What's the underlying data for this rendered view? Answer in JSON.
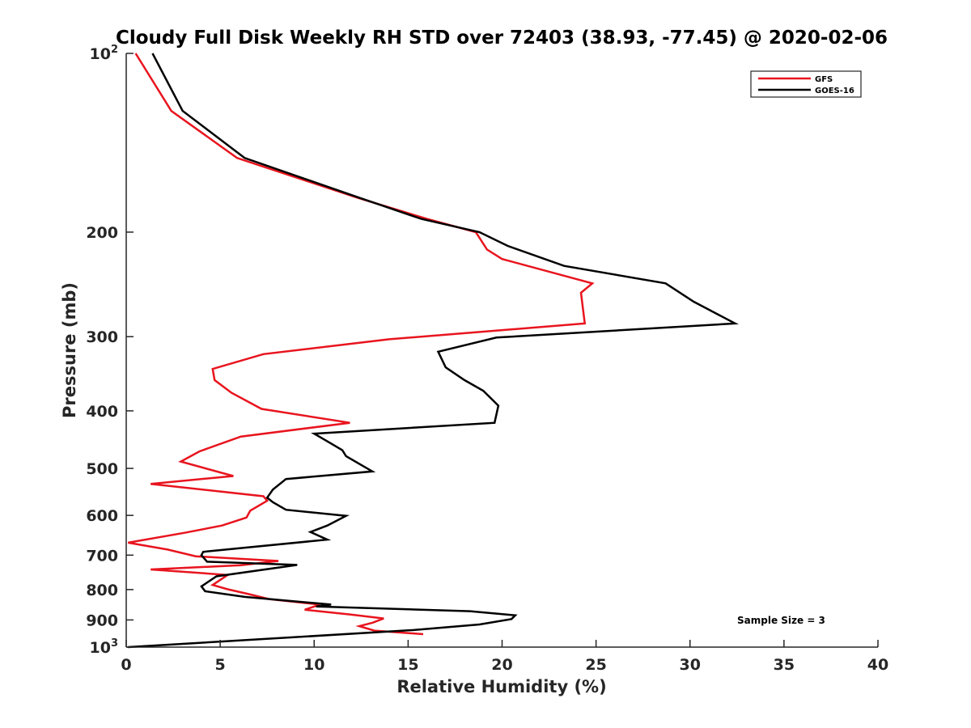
{
  "chart_data": {
    "type": "line",
    "title": "Cloudy Full Disk Weekly RH STD over 72403 (38.93, -77.45) @ 2020-02-06",
    "xlabel": "Relative Humidity (%)",
    "ylabel": "Pressure (mb)",
    "xlim": [
      0,
      40
    ],
    "ylim": [
      100,
      1000
    ],
    "y_scale": "log",
    "y_reversed": true,
    "grid": false,
    "xticks": [
      "0",
      "5",
      "10",
      "15",
      "20",
      "25",
      "30",
      "35",
      "40"
    ],
    "yticks": [
      {
        "value": 100,
        "base": "10",
        "exp": "2"
      },
      {
        "value": 200,
        "label": "200"
      },
      {
        "value": 300,
        "label": "300"
      },
      {
        "value": 400,
        "label": "400"
      },
      {
        "value": 500,
        "label": "500"
      },
      {
        "value": 600,
        "label": "600"
      },
      {
        "value": 700,
        "label": "700"
      },
      {
        "value": 800,
        "label": "800"
      },
      {
        "value": 900,
        "label": "900"
      },
      {
        "value": 1000,
        "base": "10",
        "exp": "3"
      }
    ],
    "legend_position": "top-right",
    "annotation": "Sample Size = 3",
    "series": [
      {
        "name": "GFS",
        "color": "#e8141e",
        "points": [
          [
            0.5,
            100
          ],
          [
            2.4,
            125
          ],
          [
            5.9,
            150
          ],
          [
            12.3,
            175
          ],
          [
            16.0,
            190
          ],
          [
            18.6,
            200
          ],
          [
            19.2,
            214
          ],
          [
            20.0,
            222
          ],
          [
            24.8,
            244
          ],
          [
            24.2,
            253
          ],
          [
            24.4,
            285
          ],
          [
            14.0,
            303
          ],
          [
            7.3,
            321
          ],
          [
            4.6,
            340
          ],
          [
            4.7,
            355
          ],
          [
            5.6,
            373
          ],
          [
            7.2,
            397
          ],
          [
            11.9,
            419
          ],
          [
            6.1,
            442
          ],
          [
            3.9,
            468
          ],
          [
            2.9,
            487
          ],
          [
            5.7,
            515
          ],
          [
            1.3,
            531
          ],
          [
            7.3,
            557
          ],
          [
            7.5,
            567
          ],
          [
            6.6,
            589
          ],
          [
            6.4,
            605
          ],
          [
            5.1,
            624
          ],
          [
            3.1,
            642
          ],
          [
            0.1,
            667
          ],
          [
            2.2,
            685
          ],
          [
            3.7,
            703
          ],
          [
            8.1,
            716
          ],
          [
            6.1,
            728
          ],
          [
            1.3,
            740
          ],
          [
            5.4,
            756
          ],
          [
            5.1,
            767
          ],
          [
            4.6,
            786
          ],
          [
            5.4,
            799
          ],
          [
            6.5,
            814
          ],
          [
            7.6,
            830
          ],
          [
            10.3,
            848
          ],
          [
            9.5,
            865
          ],
          [
            11.9,
            881
          ],
          [
            13.7,
            895
          ],
          [
            13.1,
            910
          ],
          [
            12.4,
            922
          ],
          [
            13.2,
            938
          ],
          [
            15.8,
            951
          ]
        ]
      },
      {
        "name": "GOES-16",
        "color": "#000000",
        "points": [
          [
            1.4,
            100
          ],
          [
            3.0,
            125
          ],
          [
            6.3,
            150
          ],
          [
            12.4,
            175
          ],
          [
            15.7,
            190
          ],
          [
            18.8,
            200
          ],
          [
            20.3,
            211
          ],
          [
            23.3,
            228
          ],
          [
            28.7,
            244
          ],
          [
            30.2,
            262
          ],
          [
            32.4,
            285
          ],
          [
            19.7,
            301
          ],
          [
            16.6,
            318
          ],
          [
            17.0,
            338
          ],
          [
            18.0,
            355
          ],
          [
            19.0,
            370
          ],
          [
            19.8,
            392
          ],
          [
            19.6,
            419
          ],
          [
            10.0,
            437
          ],
          [
            10.8,
            452
          ],
          [
            11.5,
            466
          ],
          [
            11.7,
            477
          ],
          [
            13.1,
            506
          ],
          [
            8.5,
            521
          ],
          [
            7.8,
            543
          ],
          [
            7.5,
            560
          ],
          [
            7.8,
            570
          ],
          [
            8.5,
            587
          ],
          [
            11.7,
            601
          ],
          [
            10.7,
            624
          ],
          [
            9.8,
            640
          ],
          [
            10.7,
            659
          ],
          [
            4.1,
            691
          ],
          [
            4.0,
            700
          ],
          [
            4.3,
            718
          ],
          [
            9.1,
            727
          ],
          [
            4.8,
            760
          ],
          [
            4.0,
            790
          ],
          [
            4.2,
            805
          ],
          [
            6.3,
            823
          ],
          [
            10.9,
            848
          ],
          [
            10.1,
            854
          ],
          [
            18.3,
            870
          ],
          [
            20.7,
            884
          ],
          [
            20.5,
            897
          ],
          [
            18.8,
            916
          ],
          [
            15.3,
            936
          ],
          [
            0.1,
            1000
          ]
        ]
      }
    ]
  }
}
